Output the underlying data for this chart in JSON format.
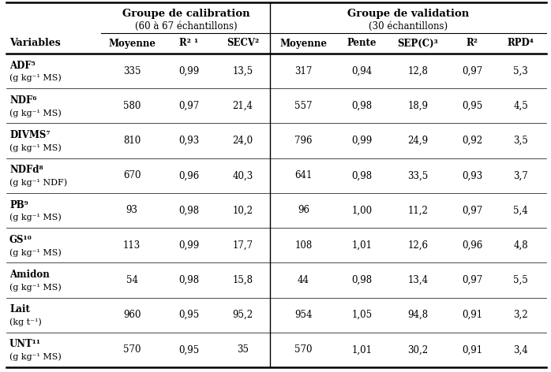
{
  "title_calib": "Groupe de calibration",
  "subtitle_calib": "(60 à 67 échantillons)",
  "title_valid": "Groupe de validation",
  "subtitle_valid": "(30 échantillons)",
  "row_data": [
    [
      "ADF⁵",
      "(g kg⁻¹ MS)",
      "335",
      "0,99",
      "13,5",
      "317",
      "0,94",
      "12,8",
      "0,97",
      "5,3"
    ],
    [
      "NDF⁶",
      "(g kg⁻¹ MS)",
      "580",
      "0,97",
      "21,4",
      "557",
      "0,98",
      "18,9",
      "0,95",
      "4,5"
    ],
    [
      "DIVMS⁷",
      "(g kg⁻¹ MS)",
      "810",
      "0,93",
      "24,0",
      "796",
      "0,99",
      "24,9",
      "0,92",
      "3,5"
    ],
    [
      "NDFd⁸",
      "(g kg⁻¹ NDF)",
      "670",
      "0,96",
      "40,3",
      "641",
      "0,98",
      "33,5",
      "0,93",
      "3,7"
    ],
    [
      "PB⁹",
      "(g kg⁻¹ MS)",
      "93",
      "0,98",
      "10,2",
      "96",
      "1,00",
      "11,2",
      "0,97",
      "5,4"
    ],
    [
      "GS¹⁰",
      "(g kg⁻¹ MS)",
      "113",
      "0,99",
      "17,7",
      "108",
      "1,01",
      "12,6",
      "0,96",
      "4,8"
    ],
    [
      "Amidon",
      "(g kg⁻¹ MS)",
      "54",
      "0,98",
      "15,8",
      "44",
      "0,98",
      "13,4",
      "0,97",
      "5,5"
    ],
    [
      "Lait",
      "(kg t⁻¹)",
      "960",
      "0,95",
      "95,2",
      "954",
      "1,05",
      "94,8",
      "0,91",
      "3,2"
    ],
    [
      "UNT¹¹",
      "(g kg⁻¹ MS)",
      "570",
      "0,95",
      "35",
      "570",
      "1,01",
      "30,2",
      "0,91",
      "3,4"
    ]
  ],
  "background_color": "#ffffff",
  "text_color": "#000000"
}
